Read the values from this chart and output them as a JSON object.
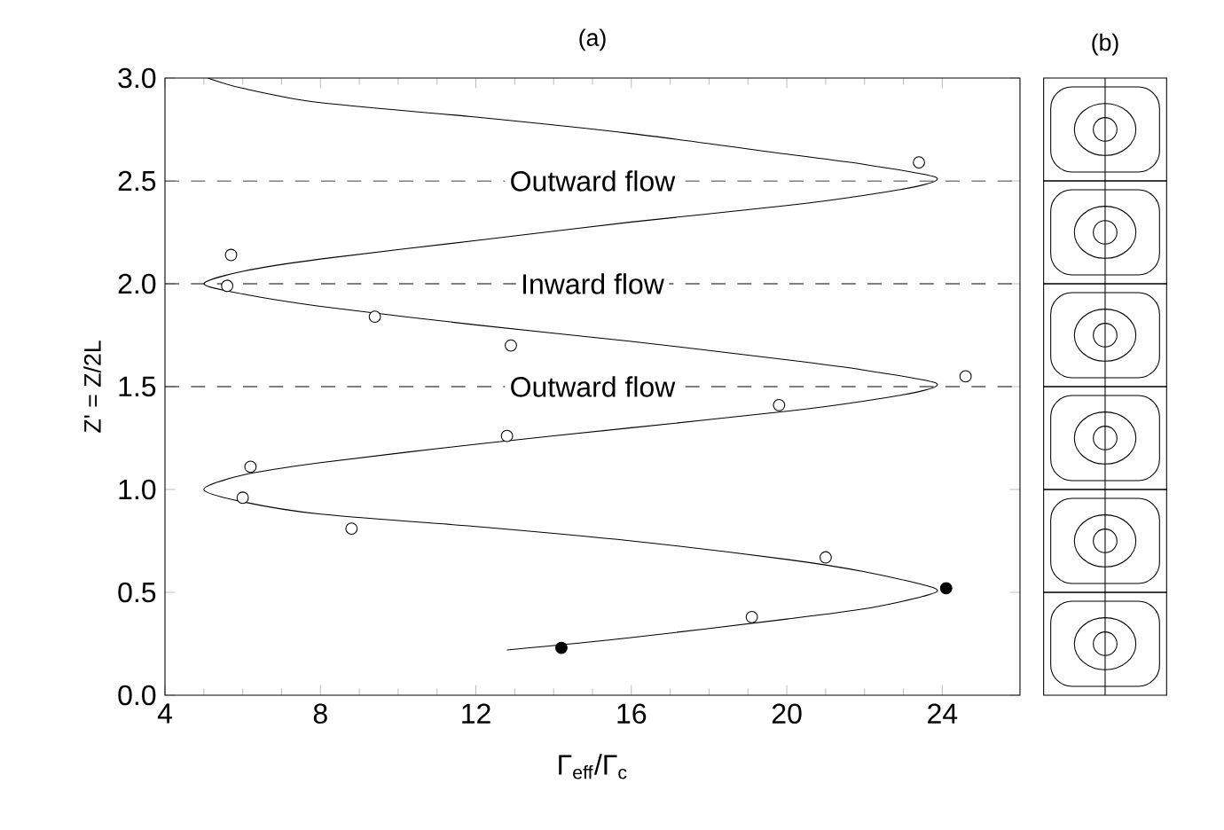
{
  "chart_data": {
    "type": "line",
    "title": "(a)",
    "xlabel": "Γ$_{eff}$/Γ$_{c}$",
    "ylabel": "Z' = Z/2L",
    "xlim": [
      4,
      26
    ],
    "xticks": [
      4,
      8,
      12,
      16,
      20,
      24
    ],
    "ylim": [
      0,
      3
    ],
    "yticks": [
      {
        "value": 0,
        "label": "0.0"
      },
      {
        "value": 0.5,
        "label": "0.5"
      },
      {
        "value": 1,
        "label": "1.0"
      },
      {
        "value": 1.5,
        "label": "1.5"
      },
      {
        "value": 2,
        "label": "2.0"
      },
      {
        "value": 2.5,
        "label": "2.5"
      },
      {
        "value": 3,
        "label": "3.0"
      }
    ],
    "grid": false,
    "series": [
      {
        "color": "#000000",
        "marker": "none",
        "x": [
          12.8,
          16,
          20,
          22,
          23.5,
          23.8,
          22,
          20,
          16,
          12,
          8,
          6,
          5,
          6,
          8,
          12,
          16,
          20,
          22,
          23.5,
          23.8,
          22,
          20,
          16,
          12,
          8,
          6,
          5,
          6,
          8,
          12,
          16,
          20,
          22,
          23.5,
          23.8,
          22,
          20,
          16,
          12,
          8,
          6,
          5.1
        ],
        "values": [
          0.22,
          0.28,
          0.37,
          0.42,
          0.48,
          0.52,
          0.6,
          0.66,
          0.75,
          0.82,
          0.88,
          0.94,
          1.0,
          1.07,
          1.13,
          1.22,
          1.3,
          1.38,
          1.43,
          1.48,
          1.52,
          1.58,
          1.63,
          1.72,
          1.8,
          1.89,
          1.95,
          2.0,
          2.06,
          2.12,
          2.21,
          2.3,
          2.38,
          2.43,
          2.48,
          2.52,
          2.58,
          2.63,
          2.73,
          2.81,
          2.88,
          2.95,
          3.0
        ]
      },
      {
        "type": "scatter",
        "color": "#ffffff",
        "marker": "circle",
        "x": [
          23.4,
          5.7,
          5.6,
          9.4,
          12.9,
          24.6,
          19.8,
          12.8,
          6.2,
          6.0,
          8.8,
          21.0,
          19.1
        ],
        "values": [
          2.59,
          2.14,
          1.99,
          1.84,
          1.7,
          1.55,
          1.41,
          1.26,
          1.11,
          0.96,
          0.81,
          0.67,
          0.38
        ]
      },
      {
        "type": "scatter",
        "color": "#000000",
        "marker": "circle",
        "x": [
          14.2,
          24.1
        ],
        "values": [
          0.23,
          0.52
        ]
      }
    ],
    "ref_lines": [
      {
        "axis": "y",
        "value": 2.5,
        "label": "Outward flow",
        "line_style": "dashed"
      },
      {
        "axis": "y",
        "value": 2.0,
        "label": "Inward flow",
        "line_style": "dashed"
      },
      {
        "axis": "y",
        "value": 1.5,
        "label": "Outward flow",
        "line_style": "dashed"
      }
    ],
    "annotations": [
      "(b)"
    ]
  }
}
